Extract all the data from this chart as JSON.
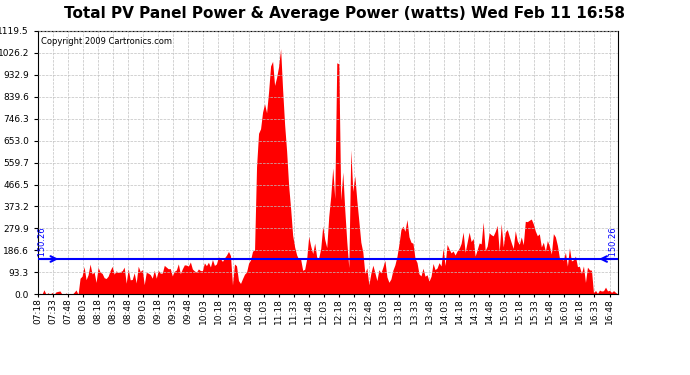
{
  "title": "Total PV Panel Power & Average Power (watts) Wed Feb 11 16:58",
  "copyright": "Copyright 2009 Cartronics.com",
  "average_line": 150.26,
  "ymax": 1119.5,
  "yticks": [
    0.0,
    93.3,
    186.6,
    279.9,
    373.2,
    466.5,
    559.7,
    653.0,
    746.3,
    839.6,
    932.9,
    1026.2,
    1119.5
  ],
  "background_color": "#ffffff",
  "fill_color": "#ff0000",
  "line_color": "#0000ff",
  "grid_color": "#c0c0c0",
  "title_fontsize": 11,
  "copyright_fontsize": 6,
  "avg_label_fontsize": 6,
  "tick_fontsize": 6.5
}
